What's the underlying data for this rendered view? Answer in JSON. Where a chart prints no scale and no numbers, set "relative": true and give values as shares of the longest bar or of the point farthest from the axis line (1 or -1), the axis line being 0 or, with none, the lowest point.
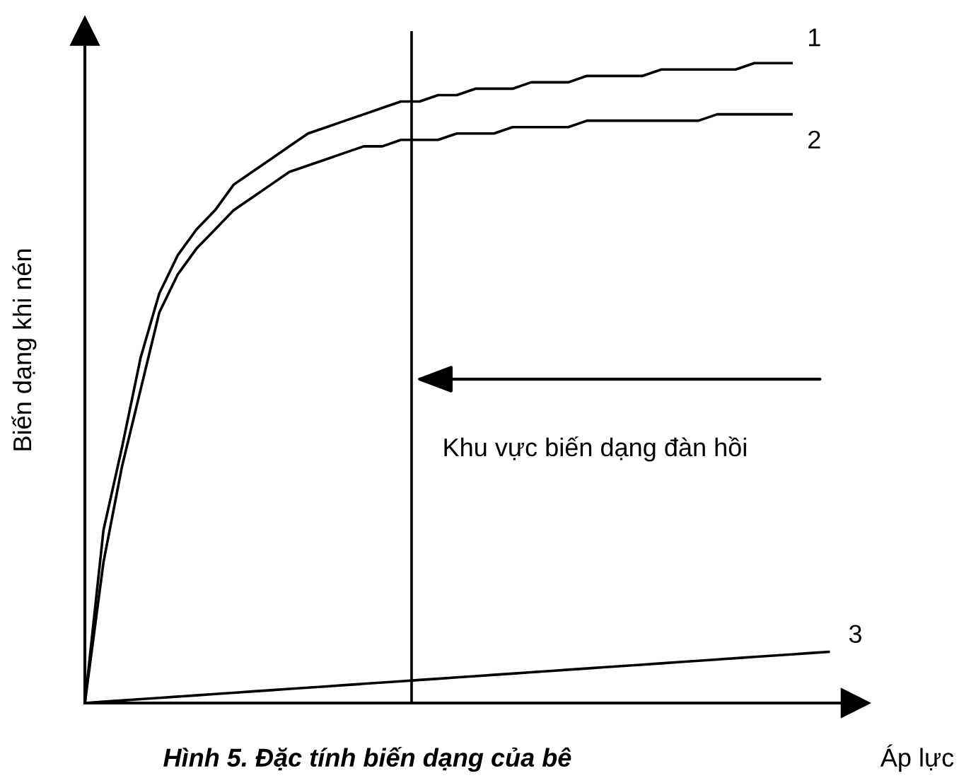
{
  "chart_data": {
    "type": "line",
    "relative": true,
    "marker": "none",
    "line_style": "solid",
    "xlabel": "Áp lực",
    "ylabel": "Biến dạng khi nén",
    "categories": [
      null,
      null,
      null,
      null,
      null,
      null,
      null,
      null,
      null,
      null,
      null,
      null,
      null,
      null,
      null,
      null,
      null,
      null,
      null,
      null,
      null,
      null,
      null,
      null,
      null,
      null,
      null,
      null,
      null,
      null,
      null,
      null,
      null,
      null,
      null,
      null,
      null,
      null,
      null,
      null,
      null
    ],
    "series": [
      {
        "name": "1",
        "color": "#000000",
        "values": [
          0,
          0.27,
          0.4,
          0.54,
          0.64,
          0.7,
          0.74,
          0.77,
          0.81,
          0.83,
          0.85,
          0.87,
          0.89,
          0.9,
          0.91,
          0.92,
          0.93,
          0.94,
          0.94,
          0.95,
          0.95,
          0.96,
          0.96,
          0.96,
          0.97,
          0.97,
          0.97,
          0.98,
          0.98,
          0.98,
          0.98,
          0.99,
          0.99,
          0.99,
          0.99,
          0.99,
          1.0,
          1.0,
          1.0,
          null,
          null
        ]
      },
      {
        "name": "2",
        "color": "#000000",
        "values": [
          0,
          0.22,
          0.37,
          0.49,
          0.61,
          0.67,
          0.71,
          0.74,
          0.77,
          0.79,
          0.81,
          0.83,
          0.84,
          0.85,
          0.86,
          0.87,
          0.87,
          0.88,
          0.88,
          0.88,
          0.89,
          0.89,
          0.89,
          0.9,
          0.9,
          0.9,
          0.9,
          0.91,
          0.91,
          0.91,
          0.91,
          0.91,
          0.91,
          0.91,
          0.92,
          0.92,
          0.92,
          0.92,
          0.92,
          null,
          null
        ]
      },
      {
        "name": "3",
        "color": "#000000",
        "values": [
          0,
          0.002,
          0.004,
          0.006,
          0.008,
          0.01,
          0.012,
          0.014,
          0.016,
          0.018,
          0.02,
          0.022,
          0.024,
          0.026,
          0.028,
          0.03,
          0.032,
          0.034,
          0.036,
          0.038,
          0.04,
          0.042,
          0.044,
          0.046,
          0.048,
          0.05,
          0.052,
          0.054,
          0.056,
          0.058,
          0.06,
          0.062,
          0.064,
          0.066,
          0.068,
          0.07,
          0.072,
          0.074,
          0.076,
          0.078,
          0.08
        ]
      }
    ],
    "annotations": [
      "Khu vực biến dạng đàn hồi",
      "Hình 5. Đặc tính biến dạng của bê"
    ]
  }
}
